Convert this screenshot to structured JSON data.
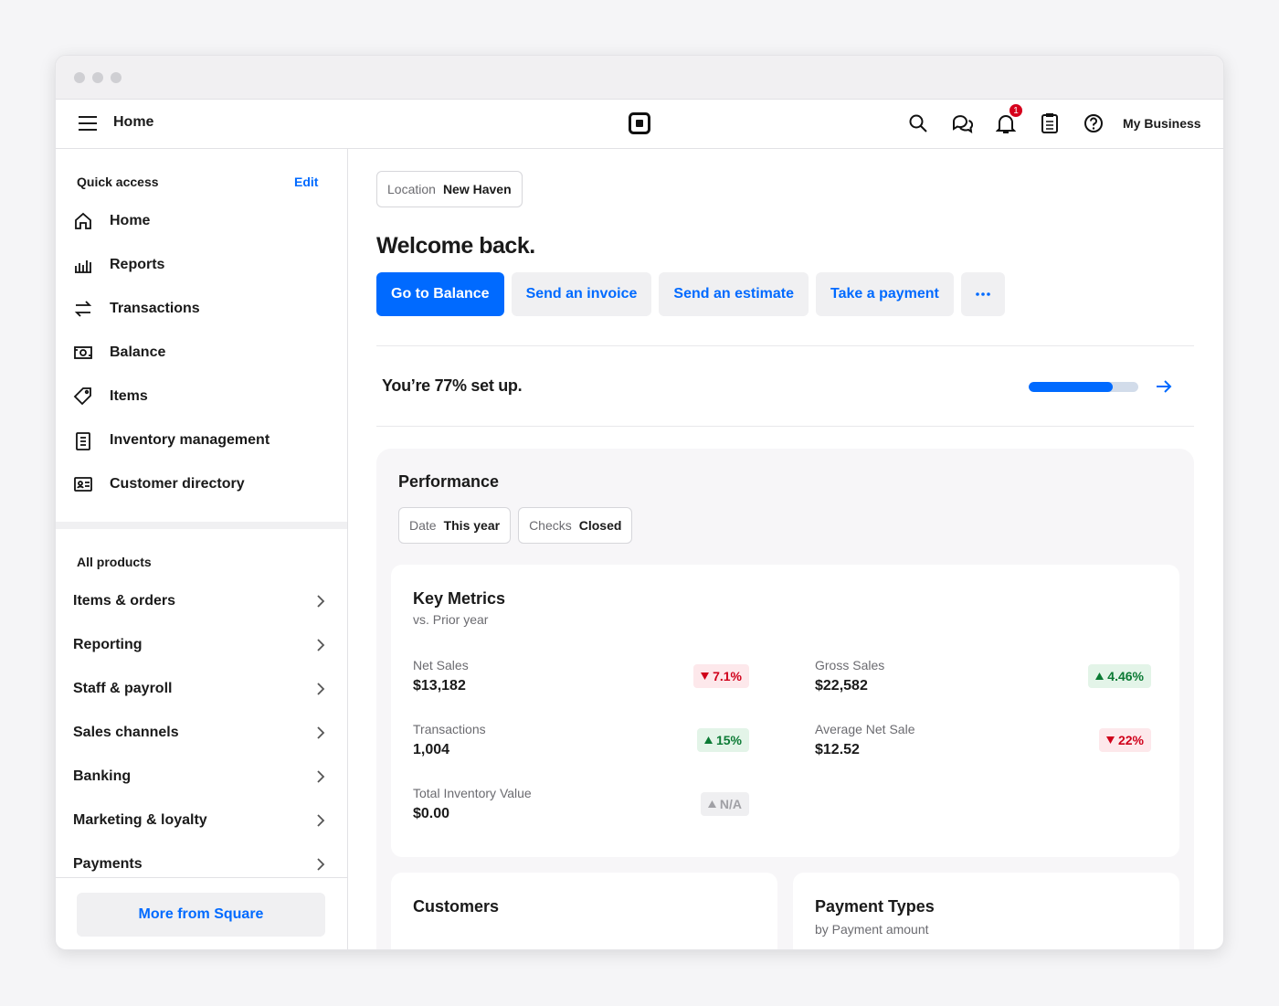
{
  "topbar": {
    "title": "Home",
    "notification_count": "1",
    "account": "My Business"
  },
  "sidebar": {
    "quick_access": {
      "title": "Quick access",
      "edit": "Edit",
      "items": [
        "Home",
        "Reports",
        "Transactions",
        "Balance",
        "Items",
        "Inventory management",
        "Customer directory"
      ]
    },
    "all_products": {
      "title": "All products",
      "items": [
        "Items & orders",
        "Reporting",
        "Staff & payroll",
        "Sales channels",
        "Banking",
        "Marketing & loyalty",
        "Payments"
      ]
    },
    "more": "More from Square"
  },
  "main": {
    "location": {
      "label": "Location",
      "value": "New Haven"
    },
    "welcome": "Welcome back.",
    "actions": [
      "Go to Balance",
      "Send an invoice",
      "Send an estimate",
      "Take a payment"
    ],
    "setup": {
      "text": "You’re 77% set up.",
      "progress": 77
    },
    "performance": {
      "title": "Performance",
      "filters": [
        {
          "label": "Date",
          "value": "This year"
        },
        {
          "label": "Checks",
          "value": "Closed"
        }
      ],
      "key_metrics": {
        "title": "Key Metrics",
        "subtitle": "vs. Prior year",
        "metrics": [
          {
            "label": "Net Sales",
            "value": "$13,182",
            "change": "7.1%",
            "direction": "down"
          },
          {
            "label": "Gross Sales",
            "value": "$22,582",
            "change": "4.46%",
            "direction": "up"
          },
          {
            "label": "Transactions",
            "value": "1,004",
            "change": "15%",
            "direction": "up"
          },
          {
            "label": "Average Net Sale",
            "value": "$12.52",
            "change": "22%",
            "direction": "down"
          },
          {
            "label": "Total Inventory Value",
            "value": "$0.00",
            "change": "N/A",
            "direction": "neutral"
          }
        ]
      },
      "customers": {
        "title": "Customers"
      },
      "payment_types": {
        "title": "Payment Types",
        "subtitle": "by Payment amount"
      }
    }
  }
}
